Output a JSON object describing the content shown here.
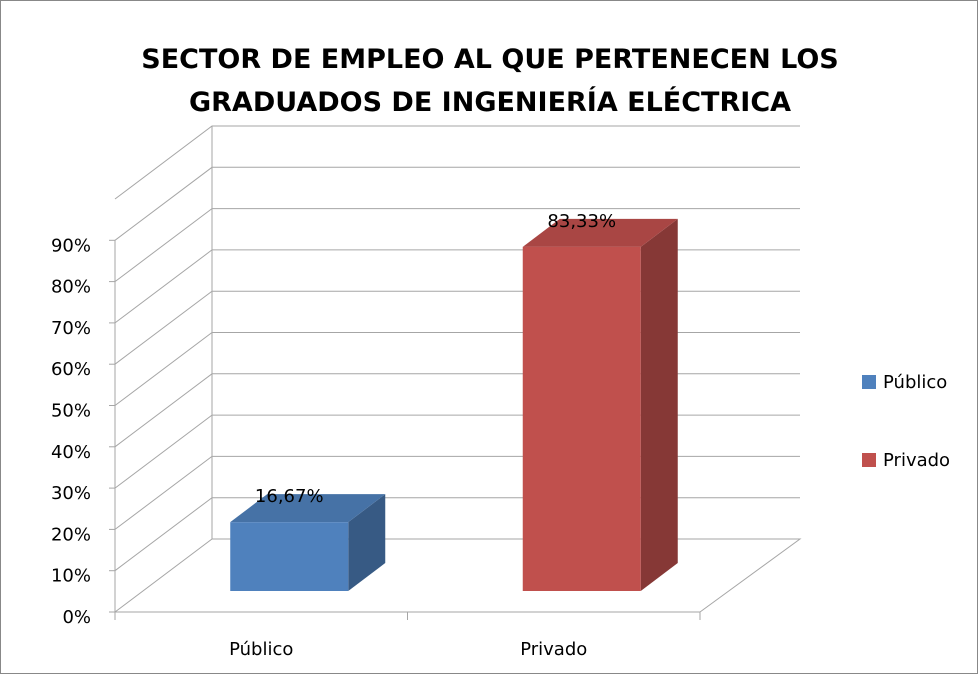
{
  "chart_data": {
    "type": "bar3d",
    "title": "SECTOR DE EMPLEO AL QUE PERTENECEN LOS GRADUADOS DE INGENIERÍA ELÉCTRICA",
    "categories": [
      "Público",
      "Privado"
    ],
    "series": [
      {
        "name": "Público",
        "color": "#4f81bd",
        "values": [
          16.67,
          null
        ],
        "value_labels": [
          "16,67%",
          null
        ]
      },
      {
        "name": "Privado",
        "color": "#c0504d",
        "values": [
          null,
          83.33
        ],
        "value_labels": [
          null,
          "83,33%"
        ]
      }
    ],
    "ylim": [
      0,
      100
    ],
    "yticks": [
      {
        "value": 0,
        "label": "0%"
      },
      {
        "value": 10,
        "label": "10%"
      },
      {
        "value": 20,
        "label": "20%"
      },
      {
        "value": 30,
        "label": "30%"
      },
      {
        "value": 40,
        "label": "40%"
      },
      {
        "value": 50,
        "label": "50%"
      },
      {
        "value": 60,
        "label": "60%"
      },
      {
        "value": 70,
        "label": "70%"
      },
      {
        "value": 80,
        "label": "80%"
      },
      {
        "value": 90,
        "label": "90%"
      }
    ],
    "grid": true,
    "legend": "right"
  }
}
